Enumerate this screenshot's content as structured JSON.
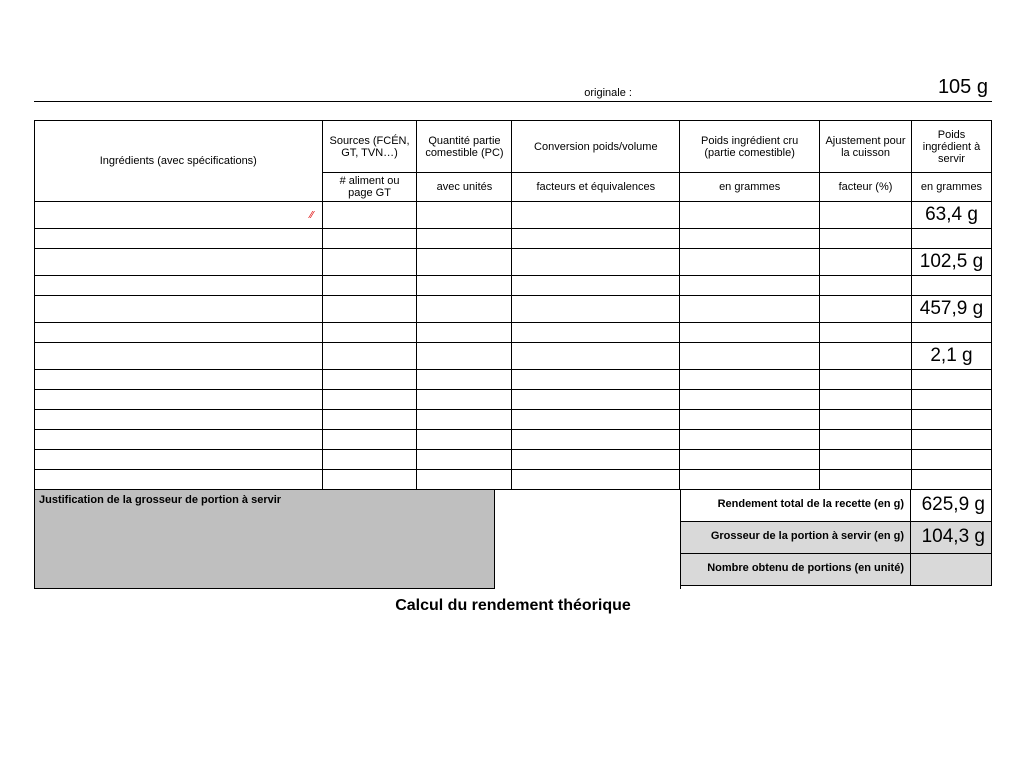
{
  "top": {
    "left_fragment": "",
    "right_fragment": "originale :",
    "value": "105 g"
  },
  "headers": {
    "ingredients": "Ingrédients (avec spécifications)",
    "sources": "Sources (FCÉN, GT, TVN…)",
    "quantite": "Quantité partie comestible (PC)",
    "conversion": "Conversion poids/volume",
    "poids_cru": "Poids ingrédient cru (partie comestible)",
    "ajustement": "Ajustement pour la cuisson",
    "poids_servir": "Poids ingrédient à servir",
    "sub_sources": "# aliment ou page GT",
    "sub_quantite": "avec unités",
    "sub_conversion": "facteurs et équivalences",
    "sub_poids_cru": "en grammes",
    "sub_ajustement": "facteur (%)",
    "sub_poids_servir": "en grammes"
  },
  "rows": [
    {
      "servir": "63,4 g"
    },
    {
      "servir": ""
    },
    {
      "servir": "102,5 g"
    },
    {
      "servir": ""
    },
    {
      "servir": "457,9 g"
    },
    {
      "servir": ""
    },
    {
      "servir": "2,1 g"
    },
    {
      "servir": ""
    },
    {
      "servir": ""
    },
    {
      "servir": ""
    },
    {
      "servir": ""
    },
    {
      "servir": ""
    },
    {
      "servir": ""
    }
  ],
  "footer": {
    "justification_label": "Justification de la grosseur de portion à servir",
    "rendement_label": "Rendement total de la recette (en g)",
    "rendement_value": "625,9 g",
    "grosseur_label": "Grosseur de la portion à servir (en g)",
    "grosseur_value": "104,3 g",
    "nombre_label": "Nombre obtenu de portions (en unité)",
    "nombre_value": ""
  },
  "title": "Calcul du rendement théorique"
}
